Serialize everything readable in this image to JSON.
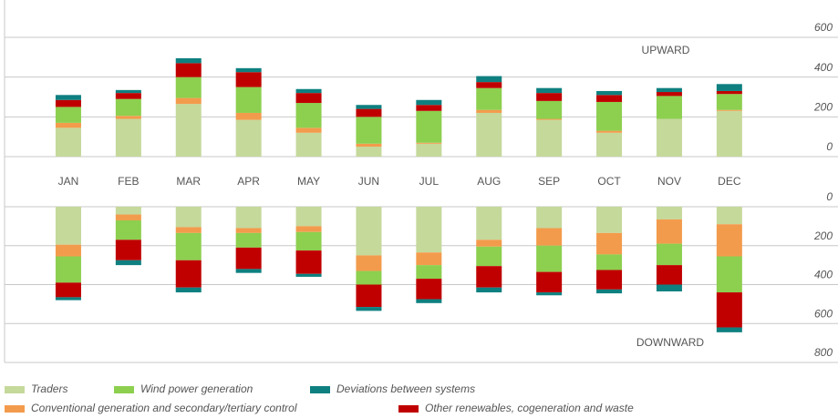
{
  "chart_data": [
    {
      "type": "bar",
      "stacked": true,
      "annotation": "UPWARD",
      "categories": [
        "JAN",
        "FEB",
        "MAR",
        "APR",
        "MAY",
        "JUN",
        "JUL",
        "AUG",
        "SEP",
        "OCT",
        "NOV",
        "DEC"
      ],
      "ylim": [
        0,
        600
      ],
      "yticks": [
        0,
        200,
        400,
        600
      ],
      "grid": true,
      "series": [
        {
          "name": "Traders",
          "color": "#c5d99b",
          "values": [
            145,
            190,
            265,
            185,
            120,
            50,
            65,
            220,
            185,
            120,
            190,
            230
          ]
        },
        {
          "name": "Conventional generation and secondary/tertiary control",
          "color": "#f39b4c",
          "values": [
            25,
            15,
            30,
            35,
            25,
            15,
            5,
            15,
            5,
            10,
            0,
            5
          ]
        },
        {
          "name": "Wind power generation",
          "color": "#8dcf4f",
          "values": [
            80,
            85,
            105,
            130,
            125,
            135,
            160,
            110,
            90,
            145,
            115,
            80
          ]
        },
        {
          "name": "Other renewables, cogeneration and waste",
          "color": "#c00000",
          "values": [
            35,
            30,
            70,
            75,
            50,
            40,
            30,
            30,
            40,
            35,
            20,
            15
          ]
        },
        {
          "name": "Deviations between systems",
          "color": "#0e8080",
          "values": [
            25,
            15,
            25,
            20,
            20,
            20,
            25,
            30,
            25,
            20,
            20,
            35
          ]
        }
      ]
    },
    {
      "type": "bar",
      "stacked": true,
      "inverted": true,
      "annotation": "DOWNWARD",
      "ylim": [
        0,
        800
      ],
      "yticks": [
        0,
        200,
        400,
        600,
        800
      ],
      "grid": true,
      "series": [
        {
          "color": "#c5d99b",
          "values": [
            195,
            40,
            105,
            110,
            100,
            250,
            235,
            170,
            110,
            135,
            65,
            90
          ]
        },
        {
          "color": "#f39b4c",
          "values": [
            60,
            30,
            30,
            25,
            30,
            80,
            65,
            35,
            90,
            110,
            125,
            165
          ]
        },
        {
          "color": "#8dcf4f",
          "values": [
            135,
            100,
            140,
            75,
            95,
            70,
            70,
            100,
            135,
            80,
            110,
            185
          ]
        },
        {
          "color": "#c00000",
          "values": [
            75,
            105,
            140,
            110,
            120,
            115,
            105,
            110,
            105,
            100,
            100,
            180
          ]
        },
        {
          "color": "#0e8080",
          "values": [
            15,
            25,
            25,
            20,
            15,
            20,
            20,
            25,
            15,
            20,
            35,
            25
          ]
        }
      ]
    }
  ]
}
